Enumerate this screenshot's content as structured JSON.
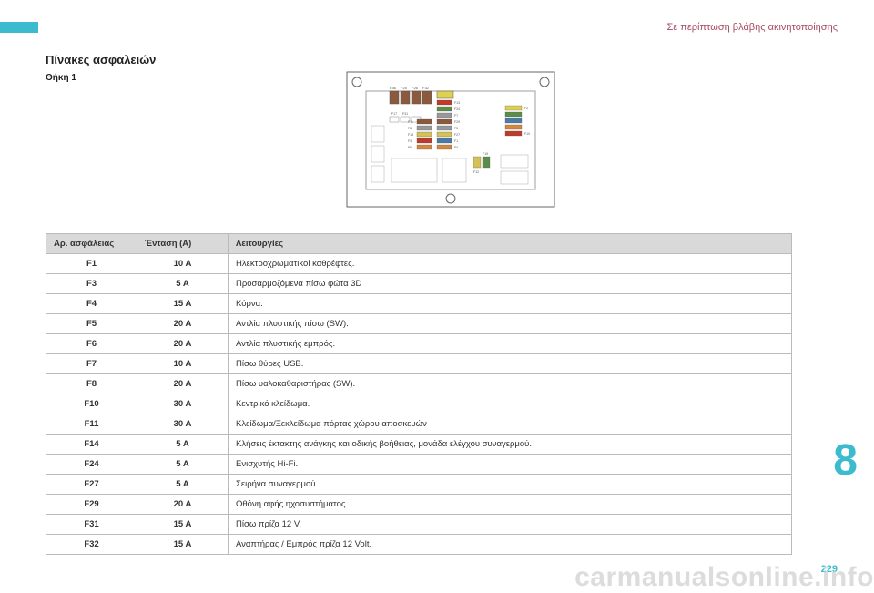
{
  "colors": {
    "accent": "#3dbbce",
    "header_text": "#a94a63",
    "page_num": "#3dbbce",
    "watermark": "#dcdcdc",
    "table_header_bg": "#d9d9d9",
    "border": "#bbbbbb"
  },
  "header": {
    "section": "Σε περίπτωση βλάβης ακινητοποίησης"
  },
  "title": "Πίνακες ασφαλειών",
  "subtitle": "Θήκη 1",
  "chapter_number": "8",
  "page_number": "229",
  "watermark": "carmanualsonline.info",
  "table": {
    "columns": [
      "Αρ. ασφάλειας",
      "Ένταση (A)",
      "Λειτουργίες"
    ],
    "rows": [
      [
        "F1",
        "10 A",
        "Ηλεκτροχρωματικοί καθρέφτες."
      ],
      [
        "F3",
        "5 A",
        "Προσαρμοζόμενα πίσω φώτα 3D"
      ],
      [
        "F4",
        "15 A",
        "Κόρνα."
      ],
      [
        "F5",
        "20 A",
        "Αντλία πλυστικής πίσω (SW)."
      ],
      [
        "F6",
        "20 A",
        "Αντλία πλυστικής εμπρός."
      ],
      [
        "F7",
        "10 A",
        "Πίσω θύρες USB."
      ],
      [
        "F8",
        "20 A",
        "Πίσω υαλοκαθαριστήρας (SW)."
      ],
      [
        "F10",
        "30 A",
        "Κεντρικό κλείδωμα."
      ],
      [
        "F11",
        "30 A",
        "Κλείδωμα/Ξεκλείδωμα πόρτας χώρου αποσκευών"
      ],
      [
        "F14",
        "5 A",
        "Κλήσεις έκτακτης ανάγκης και οδικής βοήθειας, μονάδα ελέγχου συναγερμού."
      ],
      [
        "F24",
        "5 A",
        "Ενισχυτής Hi-Fi."
      ],
      [
        "F27",
        "5 A",
        "Σειρήνα συναγερμού."
      ],
      [
        "F29",
        "20 A",
        "Οθόνη αφής ηχοσυστήματος."
      ],
      [
        "F31",
        "15 A",
        "Πίσω πρίζα 12 V."
      ],
      [
        "F32",
        "15 A",
        "Αναπτήρας / Εμπρός πρίζα 12 Volt."
      ]
    ]
  },
  "diagram": {
    "labels": [
      "F36",
      "F25",
      "F26",
      "F32",
      "F17",
      "F31",
      "F13",
      "F24",
      "F7",
      "F29",
      "F5",
      "F27",
      "F1",
      "F4",
      "F3",
      "F6",
      "F14",
      "F8",
      "F11",
      "F2",
      "F10",
      "F19",
      "F12"
    ],
    "fuse_colors": {
      "brown": "#8b5a3c",
      "red": "#c0392b",
      "green": "#5a8c4a",
      "yellow": "#d4c158",
      "blue": "#4a7ba8",
      "grey": "#999999",
      "orange": "#d4883c",
      "yellow2": "#e0d050"
    }
  }
}
